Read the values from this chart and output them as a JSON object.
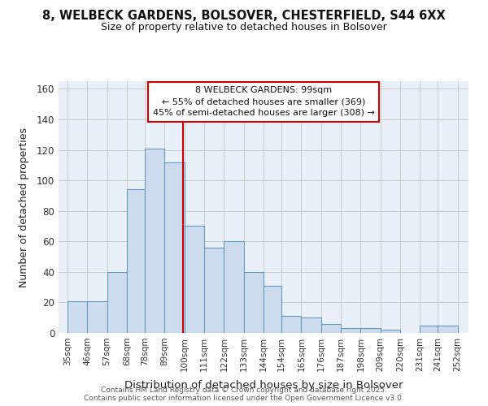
{
  "title": "8, WELBECK GARDENS, BOLSOVER, CHESTERFIELD, S44 6XX",
  "subtitle": "Size of property relative to detached houses in Bolsover",
  "xlabel": "Distribution of detached houses by size in Bolsover",
  "ylabel": "Number of detached properties",
  "bar_color": "#ccdcee",
  "bar_edge_color": "#6699bb",
  "bar_left_edges": [
    35,
    46,
    57,
    68,
    78,
    89,
    100,
    111,
    122,
    133,
    144,
    154,
    165,
    176,
    187,
    198,
    209,
    220,
    231,
    241
  ],
  "bar_widths": [
    11,
    11,
    11,
    10,
    11,
    11,
    11,
    11,
    11,
    11,
    10,
    11,
    11,
    11,
    11,
    11,
    11,
    11,
    10,
    11
  ],
  "bar_heights": [
    21,
    21,
    40,
    94,
    121,
    112,
    70,
    56,
    60,
    40,
    31,
    11,
    10,
    6,
    3,
    3,
    2,
    0,
    5,
    5
  ],
  "tick_labels": [
    "35sqm",
    "46sqm",
    "57sqm",
    "68sqm",
    "78sqm",
    "89sqm",
    "100sqm",
    "111sqm",
    "122sqm",
    "133sqm",
    "144sqm",
    "154sqm",
    "165sqm",
    "176sqm",
    "187sqm",
    "198sqm",
    "209sqm",
    "220sqm",
    "231sqm",
    "241sqm",
    "252sqm"
  ],
  "tick_positions": [
    35,
    46,
    57,
    68,
    78,
    89,
    100,
    111,
    122,
    133,
    144,
    154,
    165,
    176,
    187,
    198,
    209,
    220,
    231,
    241,
    252
  ],
  "ylim": [
    0,
    165
  ],
  "xlim": [
    30,
    258
  ],
  "property_size": 99,
  "vline_color": "#cc0000",
  "legend_title": "8 WELBECK GARDENS: 99sqm",
  "legend_line1": "← 55% of detached houses are smaller (369)",
  "legend_line2": "45% of semi-detached houses are larger (308) →",
  "legend_box_color": "white",
  "legend_box_edge": "#cc0000",
  "grid_color": "#cccccc",
  "background_color": "#eaf0f8",
  "yticks": [
    0,
    20,
    40,
    60,
    80,
    100,
    120,
    140,
    160
  ],
  "footer_line1": "Contains HM Land Registry data © Crown copyright and database right 2025.",
  "footer_line2": "Contains public sector information licensed under the Open Government Licence v3.0."
}
